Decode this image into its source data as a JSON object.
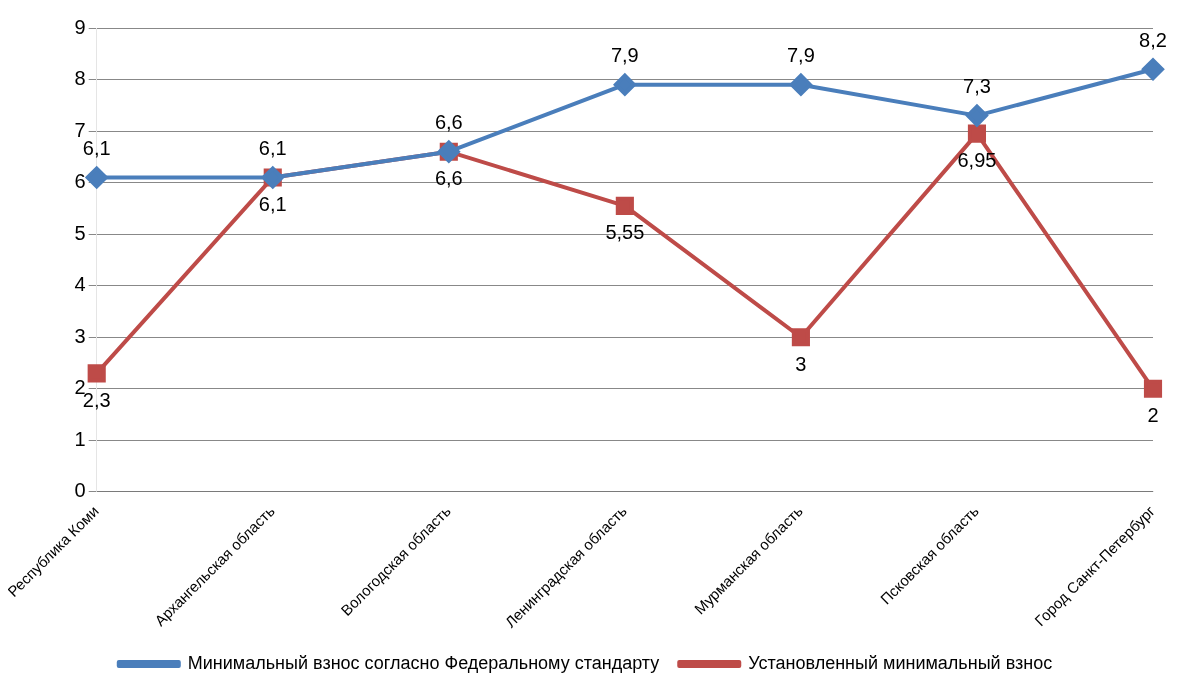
{
  "chart_data": {
    "type": "line",
    "categories": [
      "Республика Коми",
      "Архангельская область",
      "Вологодская область",
      "Ленинградская область",
      "Мурманская область",
      "Псковская область",
      "Город Санкт-Петербург"
    ],
    "series": [
      {
        "name": "Минимальный взнос согласно Федеральному стандарту",
        "color": "#4a7ebb",
        "marker": "diamond",
        "values": [
          6.1,
          6.1,
          6.6,
          7.9,
          7.9,
          7.3,
          8.2
        ],
        "value_labels": [
          "6,1",
          "6,1",
          "6,6",
          "7,9",
          "7,9",
          "7,3",
          "8,2"
        ]
      },
      {
        "name": "Установленный минимальный взнос",
        "color": "#be4b48",
        "marker": "square",
        "values": [
          2.3,
          6.1,
          6.6,
          5.55,
          3,
          6.95,
          2
        ],
        "value_labels": [
          "2,3",
          "6,1",
          "6,6",
          "5,55",
          "3",
          "6,95",
          "2"
        ]
      }
    ],
    "ylim": [
      0,
      9
    ],
    "yticks": [
      0,
      1,
      2,
      3,
      4,
      5,
      6,
      7,
      8,
      9
    ],
    "grid": "y",
    "legend": "bottom"
  }
}
